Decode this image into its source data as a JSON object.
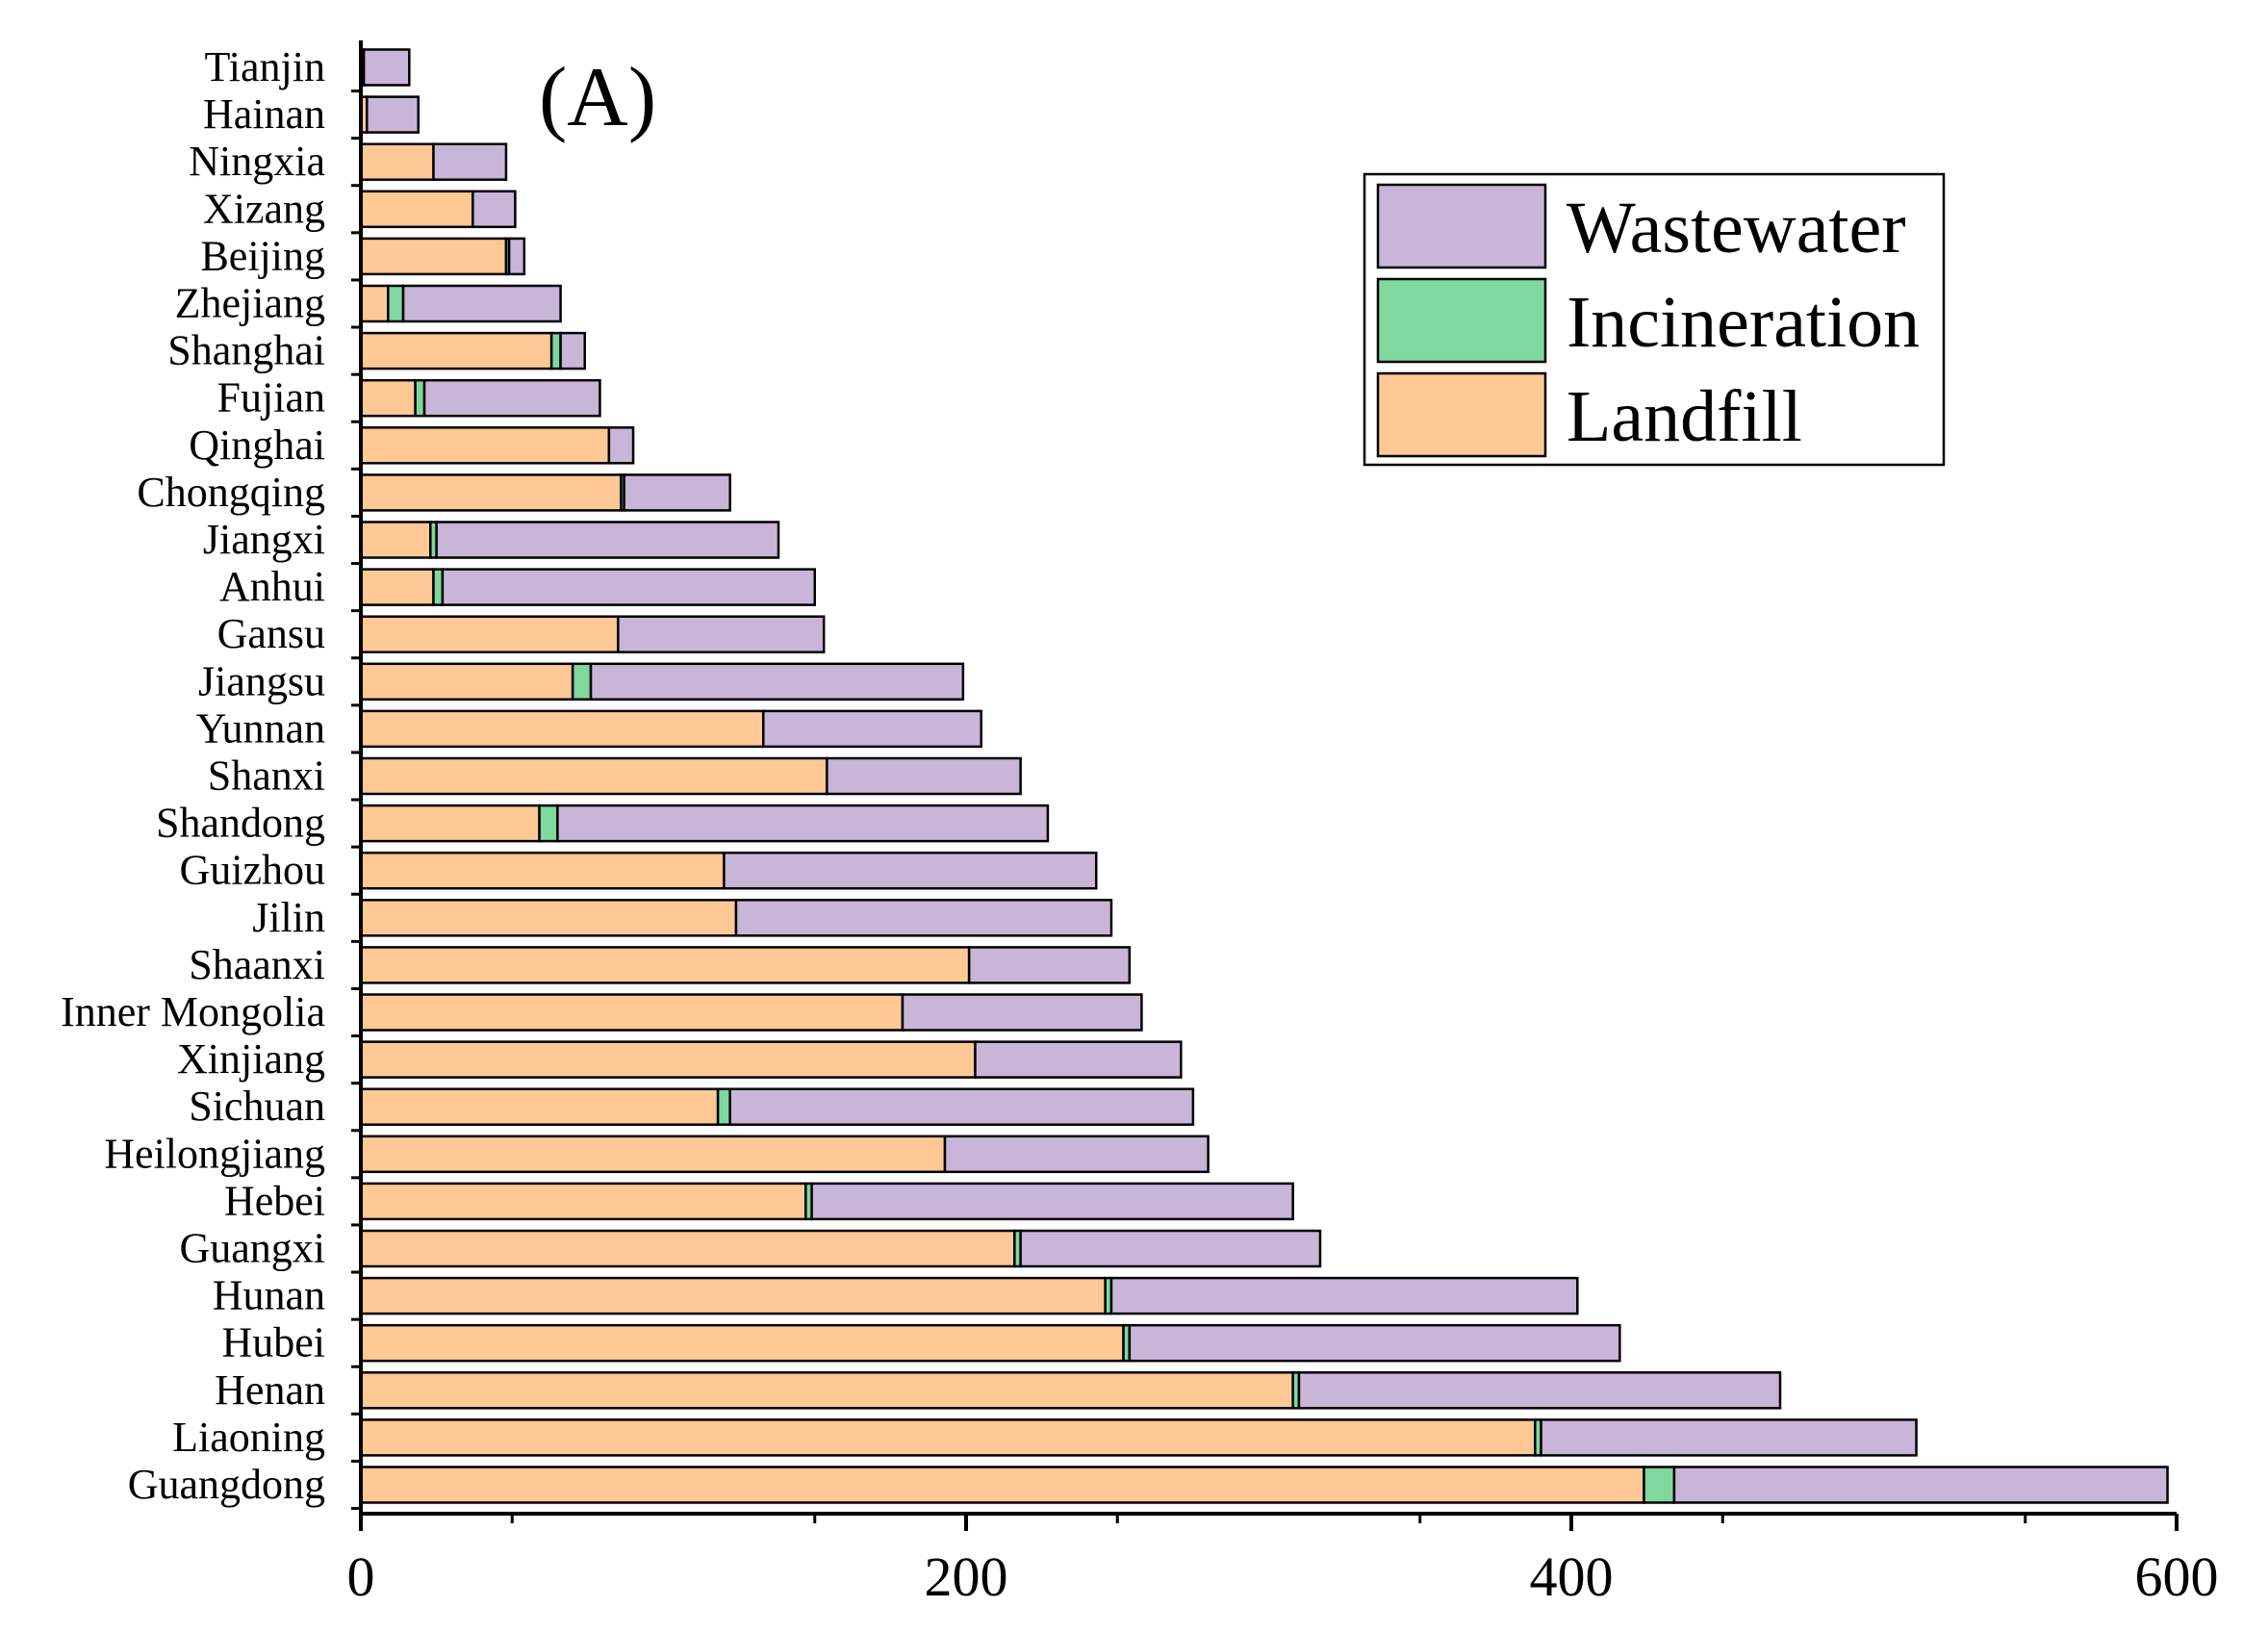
{
  "chart_data": {
    "type": "bar",
    "orientation": "horizontal",
    "stacked": true,
    "panel_label": "(A)",
    "title": "",
    "xlabel": "",
    "ylabel": "",
    "xlim": [
      0,
      600
    ],
    "x_ticks": [
      0,
      200,
      400,
      600
    ],
    "x_tick_labels": [
      "0",
      "200",
      "400",
      "600"
    ],
    "grid": false,
    "legend_position": "top-right",
    "categories": [
      "Tianjin",
      "Hainan",
      "Ningxia",
      "Xizang",
      "Beijing",
      "Zhejiang",
      "Shanghai",
      "Fujian",
      "Qinghai",
      "Chongqing",
      "Jiangxi",
      "Anhui",
      "Gansu",
      "Jiangsu",
      "Yunnan",
      "Shanxi",
      "Shandong",
      "Guizhou",
      "Jilin",
      "Shaanxi",
      "Inner Mongolia",
      "Xinjiang",
      "Sichuan",
      "Heilongjiang",
      "Hebei",
      "Guangxi",
      "Hunan",
      "Hubei",
      "Henan",
      "Liaoning",
      "Guangdong"
    ],
    "series": [
      {
        "name": "Landfill",
        "color": "#FFC895",
        "values": [
          1,
          2,
          24,
          37,
          48,
          9,
          63,
          18,
          82,
          86,
          23,
          24,
          85,
          70,
          133,
          154,
          59,
          120,
          124,
          201,
          179,
          203,
          118,
          193,
          147,
          216,
          246,
          252,
          308,
          388,
          424
        ]
      },
      {
        "name": "Incineration",
        "color": "#7FD89E",
        "values": [
          0,
          0,
          0,
          0,
          1,
          5,
          3,
          3,
          0,
          1,
          2,
          3,
          0,
          6,
          0,
          0,
          6,
          0,
          0,
          0,
          0,
          0,
          4,
          0,
          2,
          2,
          2,
          2,
          2,
          2,
          10
        ]
      },
      {
        "name": "Wastewater",
        "color": "#C8B5D8",
        "values": [
          15,
          17,
          24,
          14,
          5,
          52,
          8,
          58,
          8,
          35,
          113,
          123,
          68,
          123,
          72,
          64,
          162,
          123,
          124,
          53,
          79,
          68,
          153,
          87,
          159,
          99,
          154,
          162,
          159,
          124,
          163
        ]
      }
    ]
  }
}
